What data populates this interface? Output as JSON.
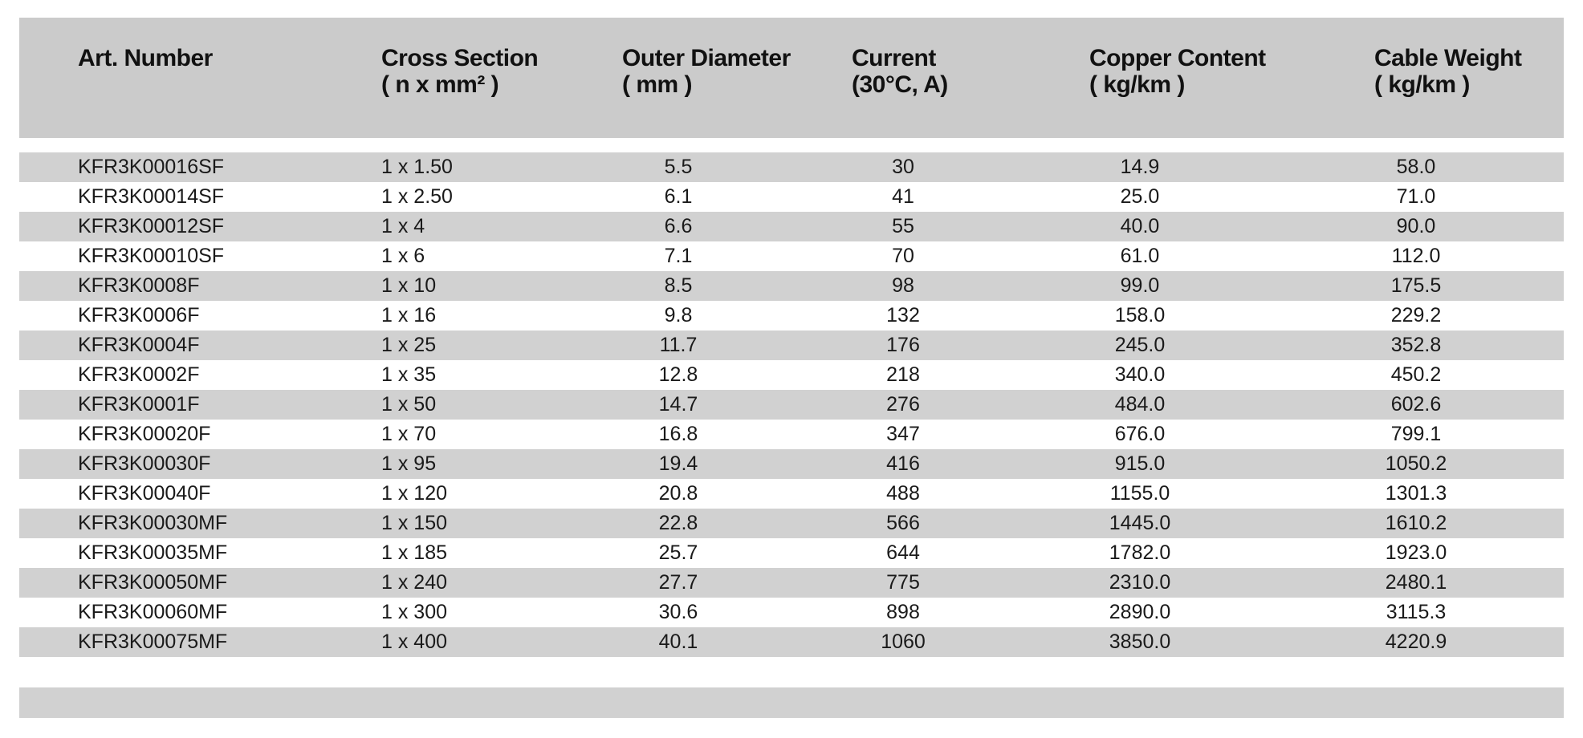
{
  "table": {
    "columns": [
      {
        "title": "Art. Number",
        "unit": ""
      },
      {
        "title": "Cross Section",
        "unit": "( n x mm² )"
      },
      {
        "title": "Outer Diameter",
        "unit": "( mm )"
      },
      {
        "title": "Current",
        "unit": "(30°C, A)"
      },
      {
        "title": "Copper Content",
        "unit": "( kg/km )"
      },
      {
        "title": "Cable Weight",
        "unit": "( kg/km )"
      }
    ],
    "rows": [
      [
        "KFR3K00016SF",
        "1 x 1.50",
        "5.5",
        "30",
        "14.9",
        "58.0"
      ],
      [
        "KFR3K00014SF",
        "1 x 2.50",
        "6.1",
        "41",
        "25.0",
        "71.0"
      ],
      [
        "KFR3K00012SF",
        "1 x 4",
        "6.6",
        "55",
        "40.0",
        "90.0"
      ],
      [
        "KFR3K00010SF",
        "1 x 6",
        "7.1",
        "70",
        "61.0",
        "112.0"
      ],
      [
        "KFR3K0008F",
        "1 x 10",
        "8.5",
        "98",
        "99.0",
        "175.5"
      ],
      [
        "KFR3K0006F",
        "1 x 16",
        "9.8",
        "132",
        "158.0",
        "229.2"
      ],
      [
        "KFR3K0004F",
        "1 x 25",
        "11.7",
        "176",
        "245.0",
        "352.8"
      ],
      [
        "KFR3K0002F",
        "1 x 35",
        "12.8",
        "218",
        "340.0",
        "450.2"
      ],
      [
        "KFR3K0001F",
        "1 x 50",
        "14.7",
        "276",
        "484.0",
        "602.6"
      ],
      [
        "KFR3K00020F",
        "1 x 70",
        "16.8",
        "347",
        "676.0",
        "799.1"
      ],
      [
        "KFR3K00030F",
        "1 x 95",
        "19.4",
        "416",
        "915.0",
        "1050.2"
      ],
      [
        "KFR3K00040F",
        "1 x 120",
        "20.8",
        "488",
        "1155.0",
        "1301.3"
      ],
      [
        "KFR3K00030MF",
        "1 x 150",
        "22.8",
        "566",
        "1445.0",
        "1610.2"
      ],
      [
        "KFR3K00035MF",
        "1 x 185",
        "25.7",
        "644",
        "1782.0",
        "1923.0"
      ],
      [
        "KFR3K00050MF",
        "1 x 240",
        "27.7",
        "775",
        "2310.0",
        "2480.1"
      ],
      [
        "KFR3K00060MF",
        "1 x 300",
        "30.6",
        "898",
        "2890.0",
        "3115.3"
      ],
      [
        "KFR3K00075MF",
        "1 x 400",
        "40.1",
        "1060",
        "3850.0",
        "4220.9"
      ]
    ],
    "colors": {
      "header_bg": "#cbcbcb",
      "stripe_bg": "#d1d1d1",
      "row_bg": "#ffffff",
      "text": "#1a1a1a"
    }
  }
}
